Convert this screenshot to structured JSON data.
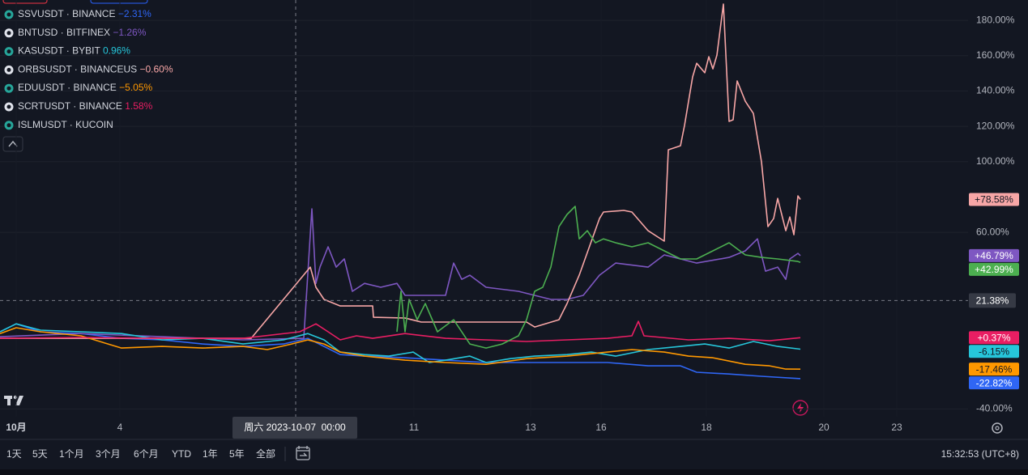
{
  "chart_data": {
    "type": "line",
    "xlim": [
      0,
      119
    ],
    "ylim": [
      -44.4,
      191.5
    ],
    "xticks": [
      {
        "value": 2,
        "label": "10月"
      },
      {
        "value": 14.8,
        "label": "4"
      },
      {
        "value": 51.1,
        "label": "11"
      },
      {
        "value": 65.5,
        "label": "13"
      },
      {
        "value": 74.2,
        "label": "16"
      },
      {
        "value": 87.2,
        "label": "18"
      },
      {
        "value": 101.7,
        "label": "20"
      },
      {
        "value": 110.7,
        "label": "23"
      }
    ],
    "yticks": [
      {
        "value": 180,
        "label": "180.00%"
      },
      {
        "value": 160,
        "label": "160.00%"
      },
      {
        "value": 140,
        "label": "140.00%"
      },
      {
        "value": 120,
        "label": "120.00%"
      },
      {
        "value": 100,
        "label": "100.00%"
      },
      {
        "value": 60,
        "label": "60.00%"
      },
      {
        "value": -40,
        "label": "-40.00%"
      }
    ],
    "grid": true,
    "crosshair": {
      "x": 36.5,
      "x_label": "周六 2023-10-07  00:00",
      "y_value": 21.38,
      "y_label": "21.38%"
    },
    "series": [
      {
        "name": "SSVUSDT · BINANCE",
        "change": "−2.31%",
        "color": "#2f66f5",
        "end_label": "-22.82%",
        "x": [
          0,
          2,
          5,
          10,
          15,
          20,
          25,
          30,
          35,
          38,
          40,
          42,
          45,
          50,
          55,
          60,
          65,
          70,
          75,
          80,
          84,
          86,
          90,
          94,
          98.8
        ],
        "values": [
          3.7,
          8.2,
          3.7,
          2.7,
          0,
          -0.9,
          -3.2,
          -4.6,
          -3.2,
          0,
          -4.6,
          -9.2,
          -10.1,
          -11.0,
          -12.4,
          -13.7,
          -13.7,
          -13.7,
          -13.7,
          -15.6,
          -15.6,
          -19.2,
          -20.2,
          -21.5,
          -22.82
        ]
      },
      {
        "name": "BNTUSD · BITFINEX",
        "change": "−1.26%",
        "color": "#7e57c2",
        "end_label": "+46.79%",
        "x": [
          0,
          10,
          20,
          30,
          37.5,
          38.5,
          39,
          39.5,
          40.5,
          41.5,
          42.5,
          43.5,
          45,
          47,
          49,
          50,
          55,
          56,
          57,
          58,
          60,
          64,
          66,
          68,
          70,
          72,
          74,
          76,
          80,
          82,
          84,
          86,
          90,
          92,
          93.5,
          94.5,
          96,
          97,
          97.5,
          98.5,
          98.8
        ],
        "values": [
          0.9,
          2.7,
          0.9,
          -0.9,
          0,
          73.3,
          31.1,
          40.3,
          51.8,
          40.3,
          44.9,
          26.6,
          31.1,
          28.9,
          31.1,
          24.3,
          24.3,
          42.6,
          33.4,
          35.7,
          28.9,
          26.6,
          24.3,
          22.0,
          22.0,
          24.3,
          35.7,
          42.6,
          40.3,
          47.2,
          44.9,
          42.6,
          45.8,
          49.5,
          56.3,
          38.0,
          40.3,
          33.4,
          44.9,
          48.1,
          46.79
        ]
      },
      {
        "name": "KASUSDT · BYBIT",
        "change": "0.96%",
        "color": "#26c6da",
        "end_label": "-6.15%",
        "x": [
          0,
          2,
          5,
          10,
          15,
          20,
          25,
          30,
          35,
          38,
          40,
          42,
          45,
          48,
          51,
          53,
          55,
          58,
          60,
          63,
          66,
          70,
          73,
          76,
          80,
          84,
          87,
          90,
          93,
          96,
          98.8
        ],
        "values": [
          3.7,
          8.2,
          4.6,
          3.7,
          2.7,
          -0.9,
          0,
          -3.2,
          -0.9,
          2.7,
          -0.9,
          -7.8,
          -9.2,
          -10.1,
          -7.8,
          -13.7,
          -12.4,
          -10.1,
          -13.7,
          -11.5,
          -10.1,
          -9.2,
          -7.8,
          -10.1,
          -6.4,
          -4.6,
          -3.2,
          -5.5,
          -1.8,
          -4.6,
          -6.15
        ]
      },
      {
        "name": "ORBSUSDT · BINANCEUS",
        "change": "−0.60%",
        "color": "#f7a6a6",
        "end_label": "+78.58%",
        "x": [
          0,
          31,
          38.3,
          39,
          40,
          42,
          46,
          46.1,
          50,
          52,
          65,
          66,
          69,
          70,
          71.5,
          74,
          74.5,
          77,
          78,
          80,
          82,
          82.5,
          84,
          84.5,
          85.5,
          86,
          87,
          87.5,
          88,
          88.5,
          89.3,
          90,
          90.5,
          91,
          92,
          93,
          94,
          94.8,
          95.5,
          96,
          97,
          97.5,
          98,
          98.5,
          98.8
        ],
        "values": [
          0,
          0,
          40.3,
          28.9,
          22.0,
          18.3,
          18.3,
          11.9,
          11.5,
          9.2,
          9.2,
          6.4,
          10.5,
          19.7,
          35.7,
          67.8,
          71.5,
          72.4,
          71.5,
          60.9,
          55.0,
          106.7,
          109.0,
          120.5,
          148.0,
          155.7,
          150.3,
          159.4,
          152.5,
          160.3,
          189.2,
          122.8,
          123.7,
          145.7,
          134.2,
          127.3,
          99.9,
          63.2,
          67.8,
          79.2,
          60.9,
          68.7,
          58.6,
          80.6,
          78.58
        ]
      },
      {
        "name": "EDUUSDT · BINANCE",
        "change": "−5.05%",
        "color": "#ff9800",
        "end_label": "-17.46%",
        "x": [
          0,
          2,
          5,
          10,
          15,
          20,
          25,
          30,
          33,
          36,
          38,
          40,
          42,
          45,
          50,
          55,
          60,
          65,
          70,
          75,
          78,
          82,
          85,
          88,
          92,
          95,
          97,
          98.8
        ],
        "values": [
          2.7,
          6.0,
          3.7,
          1.4,
          -5.5,
          -4.6,
          -5.5,
          -4.6,
          -6.4,
          -3.2,
          -0.9,
          -3.2,
          -7.8,
          -10.1,
          -12.4,
          -13.7,
          -14.7,
          -11.5,
          -10.1,
          -7.8,
          -6.4,
          -7.8,
          -10.1,
          -11.0,
          -14.7,
          -15.6,
          -17.4,
          -17.46
        ]
      },
      {
        "name": "SCRTUSDT · BINANCE",
        "change": "1.58%",
        "color": "#e91e63",
        "end_label": "+0.37%",
        "x": [
          0,
          10,
          20,
          30,
          37,
          39,
          40.5,
          42,
          44,
          46,
          50,
          55,
          60,
          65,
          70,
          75,
          78,
          78.8,
          79.5,
          85,
          90,
          95,
          98.8
        ],
        "values": [
          0,
          0.5,
          0,
          0,
          3.7,
          8.2,
          3.7,
          -0.9,
          1.4,
          0,
          2.7,
          0,
          -0.9,
          -1.8,
          -0.9,
          0,
          1.4,
          9.6,
          1.4,
          -0.9,
          0,
          -1.4,
          0.37
        ]
      },
      {
        "name": "ISLMUSDT · KUCOIN",
        "color": "#4caf50",
        "end_label": "+42.99%",
        "x": [
          49,
          49.5,
          50,
          50.5,
          51.5,
          52.5,
          54,
          56,
          58,
          60,
          62,
          64,
          65,
          66,
          67,
          68,
          69,
          70,
          71,
          71.5,
          72.5,
          73.5,
          74.5,
          76,
          78,
          80,
          82,
          84,
          86,
          88,
          90,
          92,
          94,
          96,
          98.5,
          98.8
        ],
        "values": [
          3.7,
          26.6,
          3.7,
          22.0,
          10.5,
          19.7,
          3.7,
          10.5,
          -3.2,
          -5.5,
          -3.2,
          1.4,
          10.5,
          26.6,
          28.9,
          40.3,
          63.2,
          70.1,
          74.7,
          56.3,
          60.9,
          54.1,
          56.3,
          54.1,
          51.8,
          54.1,
          49.5,
          44.9,
          44.9,
          49.5,
          54.1,
          47.2,
          45.8,
          44.9,
          43.5,
          42.99
        ]
      }
    ]
  },
  "toolbar": {
    "ranges": [
      "1天",
      "5天",
      "1个月",
      "3个月",
      "6个月",
      "YTD",
      "1年",
      "5年",
      "全部"
    ],
    "time": "15:32:53 (UTC+8)"
  }
}
